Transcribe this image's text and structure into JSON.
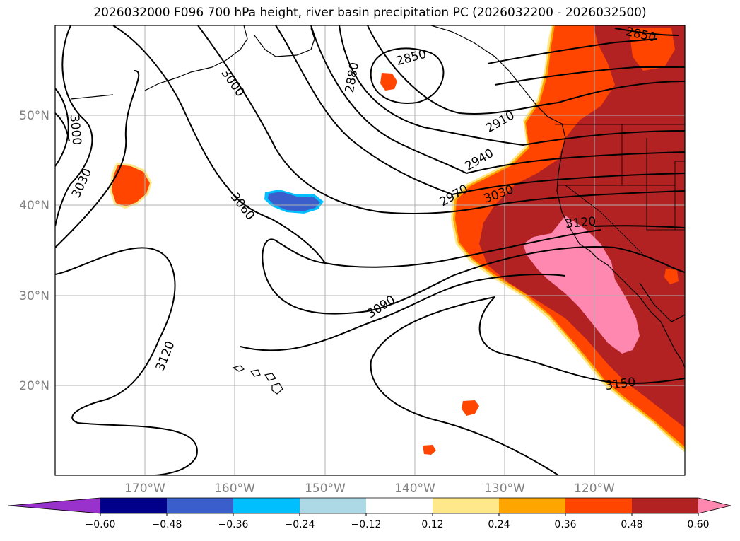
{
  "title": "2026032000 F096 700 hPa height, river basin precipitation PC (2026032200 - 2026032500)",
  "map": {
    "lat_labels": [
      "50°N",
      "40°N",
      "30°N",
      "20°N"
    ],
    "lon_labels": [
      "170°W",
      "160°W",
      "150°W",
      "140°W",
      "130°W",
      "120°W"
    ],
    "contour_labels": [
      "2850",
      "2850",
      "2880",
      "2910",
      "2940",
      "2970",
      "3000",
      "3000",
      "3030",
      "3030",
      "3060",
      "3090",
      "3120",
      "3120",
      "3150"
    ],
    "colors": {
      "ocean_land_bg": "#ffffff",
      "grid": "#b0b0b0",
      "contour": "#000000"
    }
  },
  "colorbar": {
    "ticks": [
      "−0.60",
      "−0.48",
      "−0.36",
      "−0.24",
      "−0.12",
      "0.12",
      "0.24",
      "0.36",
      "0.48",
      "0.60"
    ],
    "colors": [
      "#9932cc",
      "#00008b",
      "#3a5fcd",
      "#00bfff",
      "#add8e6",
      "#ffffff",
      "#ffe88a",
      "#ffa500",
      "#ff4500",
      "#b22222",
      "#ff88b0"
    ]
  }
}
